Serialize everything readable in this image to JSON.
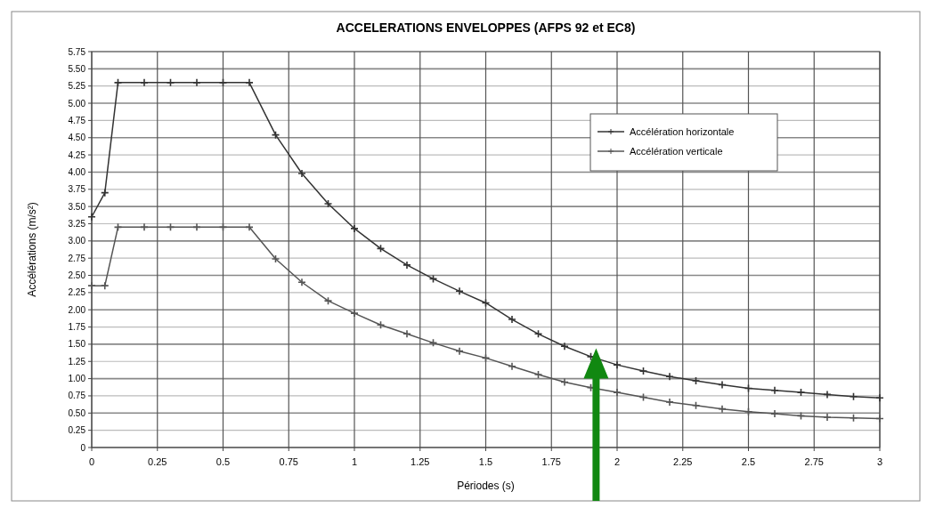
{
  "chart_data": {
    "type": "line",
    "title": "ACCELERATIONS ENVELOPPES (AFPS 92 et EC8)",
    "xlabel": "Périodes (s)",
    "ylabel": "Accélérations (m/s²)",
    "xlim": [
      0,
      3
    ],
    "ylim": [
      0,
      5.75
    ],
    "xticks": [
      0,
      0.25,
      0.5,
      0.75,
      1,
      1.25,
      1.5,
      1.75,
      2,
      2.25,
      2.5,
      2.75,
      3
    ],
    "yticks": [
      0,
      {
        "value": 0.25,
        "label": "0.25"
      },
      {
        "value": 0.5,
        "label": "0.50"
      },
      {
        "value": 0.75,
        "label": "0.75"
      },
      {
        "value": 1,
        "label": "1.00"
      },
      {
        "value": 1.25,
        "label": "1.25"
      },
      {
        "value": 1.5,
        "label": "1.50"
      },
      {
        "value": 1.75,
        "label": "1.75"
      },
      {
        "value": 2,
        "label": "2.00"
      },
      {
        "value": 2.25,
        "label": "2.25"
      },
      {
        "value": 2.5,
        "label": "2.50"
      },
      {
        "value": 2.75,
        "label": "2.75"
      },
      {
        "value": 3,
        "label": "3.00"
      },
      {
        "value": 3.25,
        "label": "3.25"
      },
      {
        "value": 3.5,
        "label": "3.50"
      },
      {
        "value": 3.75,
        "label": "3.75"
      },
      {
        "value": 4,
        "label": "4.00"
      },
      {
        "value": 4.25,
        "label": "4.25"
      },
      {
        "value": 4.5,
        "label": "4.50"
      },
      {
        "value": 4.75,
        "label": "4.75"
      },
      {
        "value": 5,
        "label": "5.00"
      },
      {
        "value": 5.25,
        "label": "5.25"
      },
      {
        "value": 5.5,
        "label": "5.50"
      },
      {
        "value": 5.75,
        "label": "5.75"
      }
    ],
    "grid": true,
    "legend": "top right",
    "marker": "cross",
    "line_style": "solid",
    "series": [
      {
        "name": "Accélération horizontale",
        "color": "#333333",
        "x": [
          0,
          0.05,
          0.1,
          0.2,
          0.3,
          0.4,
          0.5,
          0.6,
          0.7,
          0.8,
          0.9,
          1.0,
          1.1,
          1.2,
          1.3,
          1.4,
          1.5,
          1.6,
          1.7,
          1.8,
          1.9,
          2.0,
          2.1,
          2.2,
          2.3,
          2.4,
          2.5,
          2.6,
          2.7,
          2.8,
          2.9,
          3.0
        ],
        "values": [
          3.35,
          3.7,
          5.3,
          5.3,
          5.3,
          5.3,
          5.3,
          5.3,
          4.54,
          3.98,
          3.54,
          3.18,
          2.89,
          2.65,
          2.45,
          2.27,
          2.1,
          1.86,
          1.65,
          1.47,
          1.32,
          1.2,
          1.11,
          1.03,
          0.97,
          0.91,
          0.86,
          0.83,
          0.8,
          0.77,
          0.74,
          0.72
        ]
      },
      {
        "name": "Accélération verticale",
        "color": "#555555",
        "x": [
          0,
          0.05,
          0.1,
          0.2,
          0.3,
          0.4,
          0.5,
          0.6,
          0.7,
          0.8,
          0.9,
          1.0,
          1.1,
          1.2,
          1.3,
          1.4,
          1.5,
          1.6,
          1.7,
          1.8,
          1.9,
          2.0,
          2.1,
          2.2,
          2.3,
          2.4,
          2.5,
          2.6,
          2.7,
          2.8,
          2.9,
          3.0
        ],
        "values": [
          2.35,
          2.35,
          3.2,
          3.2,
          3.2,
          3.2,
          3.2,
          3.2,
          2.74,
          2.4,
          2.13,
          1.95,
          1.78,
          1.65,
          1.52,
          1.4,
          1.3,
          1.18,
          1.06,
          0.95,
          0.87,
          0.8,
          0.73,
          0.66,
          0.61,
          0.56,
          0.52,
          0.49,
          0.46,
          0.44,
          0.43,
          0.42
        ]
      }
    ]
  }
}
